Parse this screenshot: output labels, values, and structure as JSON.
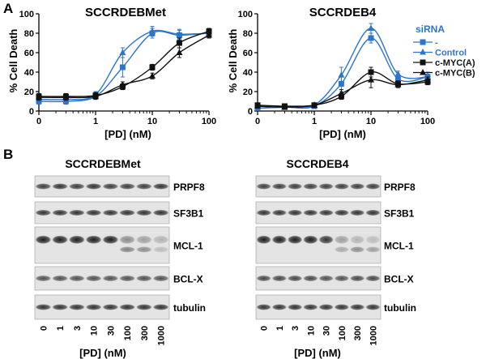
{
  "panels": {
    "a_label": "A",
    "b_label": "B"
  },
  "chart_data": [
    {
      "type": "line",
      "title": "SCCRDEBMet",
      "xlabel": "[PD] (nM)",
      "ylabel": "% Cell Death",
      "xscale": "log",
      "xlim": [
        0,
        100
      ],
      "ylim": [
        0,
        100
      ],
      "xticks": [
        "0",
        "1",
        "10",
        "100"
      ],
      "yticks": [
        "0",
        "20",
        "40",
        "60",
        "80",
        "100"
      ],
      "x": [
        0,
        0.3,
        1,
        3,
        10,
        30,
        100
      ],
      "series": [
        {
          "name": "-",
          "color": "#2e75c9",
          "marker": "square",
          "values": [
            10,
            10,
            15,
            45,
            80,
            78,
            80
          ],
          "err": [
            3,
            3,
            3,
            10,
            5,
            5,
            3
          ]
        },
        {
          "name": "Control",
          "color": "#2e75c9",
          "marker": "triangle",
          "values": [
            12,
            12,
            17,
            60,
            82,
            79,
            80
          ],
          "err": [
            3,
            3,
            3,
            5,
            5,
            5,
            3
          ]
        },
        {
          "name": "c-MYC(A)",
          "color": "#111111",
          "marker": "square",
          "values": [
            15,
            15,
            16,
            25,
            45,
            70,
            82
          ],
          "err": [
            3,
            3,
            3,
            3,
            3,
            5,
            3
          ]
        },
        {
          "name": "c-MYC(B)",
          "color": "#111111",
          "marker": "triangle",
          "values": [
            14,
            14,
            15,
            27,
            36,
            60,
            78
          ],
          "err": [
            3,
            3,
            3,
            3,
            3,
            5,
            3
          ]
        }
      ]
    },
    {
      "type": "line",
      "title": "SCCRDEB4",
      "xlabel": "[PD] (nM)",
      "ylabel": "% Cell Death",
      "xscale": "log",
      "xlim": [
        0,
        100
      ],
      "ylim": [
        0,
        100
      ],
      "xticks": [
        "0",
        "1",
        "10",
        "100"
      ],
      "yticks": [
        "0",
        "20",
        "40",
        "60",
        "80",
        "100"
      ],
      "x": [
        0,
        0.3,
        1,
        3,
        10,
        30,
        100
      ],
      "legend_title": "siRNA",
      "legend_position": "top-right",
      "series": [
        {
          "name": "-",
          "color": "#2e75c9",
          "marker": "square",
          "values": [
            3,
            4,
            5,
            28,
            75,
            33,
            35
          ],
          "err": [
            2,
            2,
            2,
            8,
            5,
            3,
            5
          ]
        },
        {
          "name": "Control",
          "color": "#2e75c9",
          "marker": "triangle",
          "values": [
            3,
            4,
            6,
            37,
            85,
            38,
            35
          ],
          "err": [
            2,
            2,
            2,
            8,
            5,
            3,
            3
          ]
        },
        {
          "name": "c-MYC(A)",
          "color": "#111111",
          "marker": "square",
          "values": [
            6,
            5,
            6,
            15,
            40,
            28,
            30
          ],
          "err": [
            2,
            2,
            2,
            3,
            5,
            3,
            3
          ]
        },
        {
          "name": "c-MYC(B)",
          "color": "#111111",
          "marker": "triangle",
          "values": [
            5,
            4,
            6,
            18,
            32,
            27,
            32
          ],
          "err": [
            2,
            2,
            2,
            4,
            8,
            3,
            3
          ]
        }
      ]
    }
  ],
  "blots": [
    {
      "title": "SCCRDEBMet",
      "proteins": [
        "PRPF8",
        "SF3B1",
        "MCL-1",
        "BCL-X",
        "tubulin"
      ],
      "lanes": [
        "0",
        "1",
        "3",
        "10",
        "30",
        "100",
        "300",
        "1000"
      ],
      "xlabel": "[PD] (nM)"
    },
    {
      "title": "SCCRDEB4",
      "proteins": [
        "PRPF8",
        "SF3B1",
        "MCL-1",
        "BCL-X",
        "tubulin"
      ],
      "lanes": [
        "0",
        "1",
        "3",
        "10",
        "30",
        "100",
        "300",
        "1000"
      ],
      "xlabel": "[PD] (nM)"
    }
  ]
}
